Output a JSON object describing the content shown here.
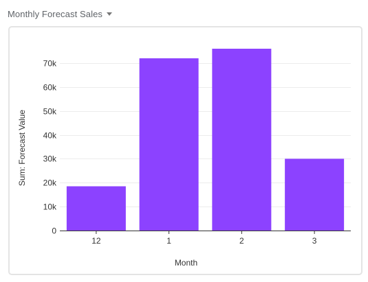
{
  "header": {
    "title": "Monthly Forecast Sales",
    "dropdown_icon": "caret-down-icon"
  },
  "colors": {
    "bar": "#8c42ff",
    "grid": "#ececec",
    "axis": "#333333",
    "card_border": "#e4e4e4"
  },
  "chart_data": {
    "type": "bar",
    "title": "Monthly Forecast Sales",
    "categories": [
      "12",
      "1",
      "2",
      "3"
    ],
    "series": [
      {
        "values": [
          18500,
          72000,
          76000,
          30000
        ]
      }
    ],
    "xlabel": "Month",
    "ylabel": "Sum: Forecast Value",
    "ylim": [
      0,
      76000
    ],
    "yticks": [
      0,
      10000,
      20000,
      30000,
      40000,
      50000,
      60000,
      70000
    ],
    "ytick_labels": [
      "0",
      "10k",
      "20k",
      "30k",
      "40k",
      "50k",
      "60k",
      "70k"
    ],
    "grid": true,
    "legend": "none"
  }
}
